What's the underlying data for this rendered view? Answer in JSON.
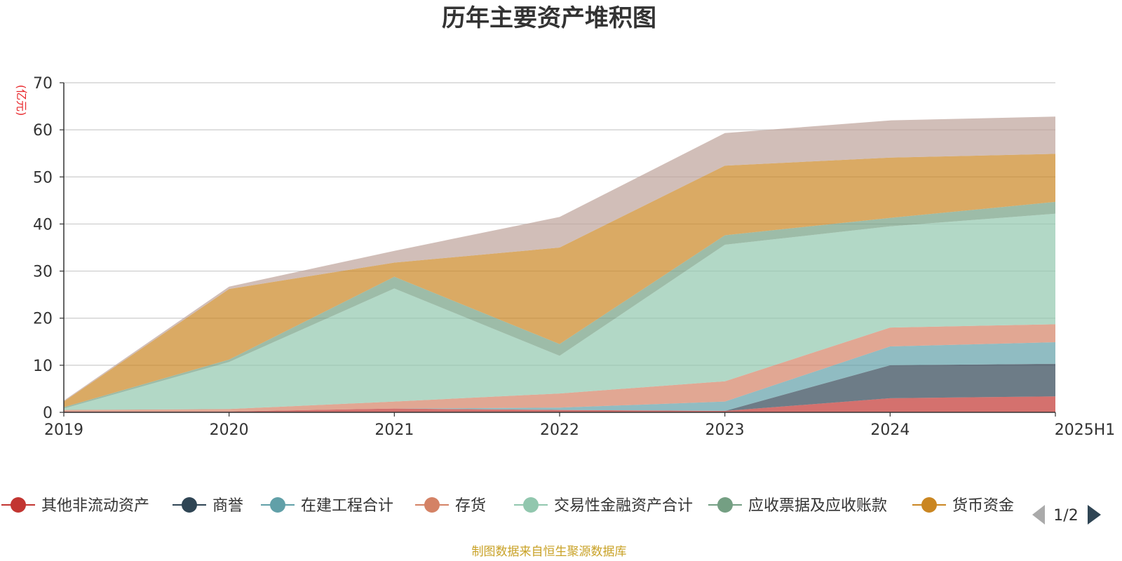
{
  "chart_data": {
    "type": "area",
    "title": "历年主要资产堆积图",
    "ylabel": "(亿元)",
    "ylim": [
      0,
      70
    ],
    "yticks": [
      0,
      10,
      20,
      30,
      40,
      50,
      60,
      70
    ],
    "categories": [
      "2019",
      "2020",
      "2021",
      "2022",
      "2023",
      "2024",
      "2025H1"
    ],
    "stacked": true,
    "grid": true,
    "legend_position": "bottom",
    "series": [
      {
        "name": "其他非流动资产",
        "color": "#c23531",
        "values": [
          0.2,
          0.2,
          0.8,
          0.5,
          0.3,
          3.0,
          3.4
        ]
      },
      {
        "name": "商誉",
        "color": "#2f4554",
        "values": [
          0,
          0,
          0,
          0,
          0,
          7.0,
          6.9
        ]
      },
      {
        "name": "在建工程合计",
        "color": "#61a0a8",
        "values": [
          0,
          0,
          0,
          0.5,
          2.0,
          4.0,
          4.6
        ]
      },
      {
        "name": "存货",
        "color": "#d48265",
        "values": [
          0.3,
          0.5,
          1.5,
          3.0,
          4.3,
          4.0,
          3.8
        ]
      },
      {
        "name": "交易性金融资产合计",
        "color": "#91c7ae",
        "values": [
          0.3,
          10.0,
          24.0,
          8.0,
          29.0,
          21.5,
          23.5
        ]
      },
      {
        "name": "应收票据及应收账款",
        "color": "#749f83",
        "values": [
          0.3,
          0.5,
          2.5,
          2.5,
          2.0,
          1.8,
          2.5
        ]
      },
      {
        "name": "货币资金",
        "color": "#ca8622",
        "values": [
          1.2,
          15.0,
          3.0,
          20.5,
          14.8,
          12.8,
          10.2
        ]
      },
      {
        "name": "",
        "color": "#bda29a",
        "values": [
          0.2,
          0.5,
          2.5,
          6.5,
          6.9,
          7.9,
          7.9
        ]
      }
    ],
    "legend": {
      "page": "1/2"
    }
  },
  "source": "制图数据来自恒生聚源数据库"
}
